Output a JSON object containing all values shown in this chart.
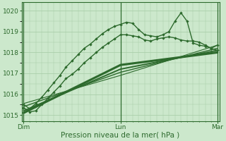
{
  "bg_color": "#cce8cc",
  "grid_color": "#aacfaa",
  "line_color": "#2d6a2d",
  "xlabel": "Pression niveau de la mer( hPa )",
  "xlabel_fontsize": 7.5,
  "tick_color": "#2d6a2d",
  "yticks": [
    1015,
    1016,
    1017,
    1018,
    1019,
    1020
  ],
  "xtick_labels": [
    "Dim",
    "Lun",
    "Mar"
  ],
  "xtick_positions": [
    0,
    48,
    96
  ],
  "xlim": [
    -1,
    97
  ],
  "ylim": [
    1014.7,
    1020.4
  ],
  "series": [
    {
      "x": [
        0,
        3,
        6,
        9,
        12,
        15,
        18,
        21,
        24,
        27,
        30,
        33,
        36,
        39,
        42,
        45,
        48,
        51,
        54,
        57,
        60,
        63,
        66,
        69,
        72,
        75,
        78,
        81,
        84,
        87,
        90,
        93,
        96
      ],
      "y": [
        1015.35,
        1015.15,
        1015.2,
        1015.5,
        1015.8,
        1016.1,
        1016.4,
        1016.75,
        1016.95,
        1017.2,
        1017.5,
        1017.75,
        1018.0,
        1018.25,
        1018.45,
        1018.65,
        1018.85,
        1018.85,
        1018.8,
        1018.75,
        1018.6,
        1018.55,
        1018.65,
        1018.7,
        1018.75,
        1018.7,
        1018.6,
        1018.55,
        1018.55,
        1018.5,
        1018.35,
        1018.2,
        1018.1
      ],
      "style": "marker",
      "linewidth": 1.0,
      "markersize": 2.2,
      "color": "#2d6a2d"
    },
    {
      "x": [
        0,
        3,
        6,
        9,
        12,
        15,
        18,
        21,
        24,
        27,
        30,
        33,
        36,
        39,
        42,
        45,
        48,
        51,
        54,
        57,
        60,
        63,
        66,
        69,
        72,
        75,
        78,
        81,
        84,
        87,
        90,
        93,
        96
      ],
      "y": [
        1015.5,
        1015.3,
        1015.55,
        1015.85,
        1016.2,
        1016.55,
        1016.9,
        1017.3,
        1017.6,
        1017.9,
        1018.2,
        1018.4,
        1018.65,
        1018.9,
        1019.1,
        1019.25,
        1019.35,
        1019.45,
        1019.4,
        1019.1,
        1018.85,
        1018.8,
        1018.75,
        1018.85,
        1019.0,
        1019.5,
        1019.9,
        1019.5,
        1018.45,
        1018.35,
        1018.3,
        1018.2,
        1018.35
      ],
      "style": "marker",
      "linewidth": 1.0,
      "markersize": 2.2,
      "color": "#2d6a2d"
    },
    {
      "x": [
        0,
        48,
        96
      ],
      "y": [
        1015.1,
        1017.4,
        1018.0
      ],
      "style": "plain",
      "linewidth": 2.2,
      "color": "#2d6a2d"
    },
    {
      "x": [
        0,
        48,
        96
      ],
      "y": [
        1015.2,
        1017.2,
        1018.1
      ],
      "style": "plain",
      "linewidth": 1.4,
      "color": "#2d6a2d"
    },
    {
      "x": [
        0,
        48,
        96
      ],
      "y": [
        1015.4,
        1017.05,
        1018.2
      ],
      "style": "plain",
      "linewidth": 1.0,
      "color": "#2d6a2d"
    },
    {
      "x": [
        0,
        48,
        96
      ],
      "y": [
        1015.55,
        1016.9,
        1018.35
      ],
      "style": "plain",
      "linewidth": 0.8,
      "color": "#2d6a2d"
    }
  ]
}
